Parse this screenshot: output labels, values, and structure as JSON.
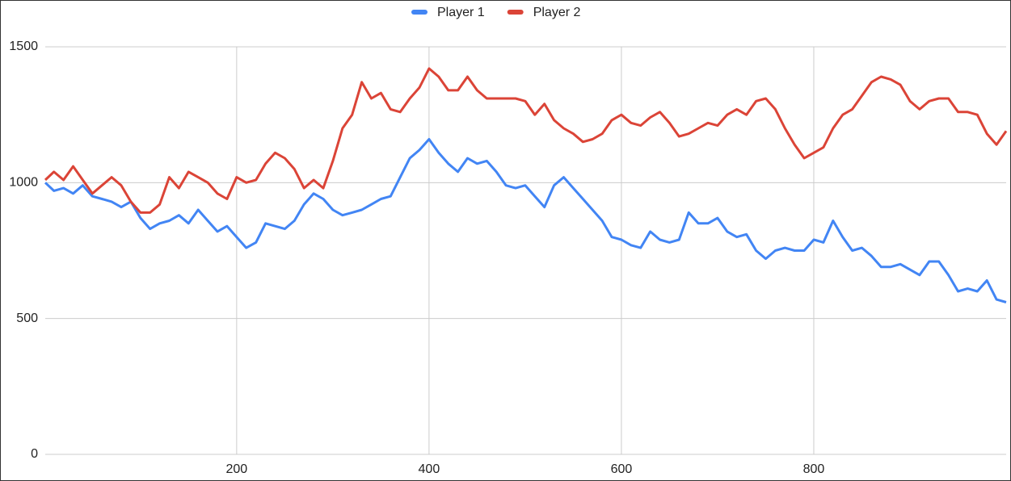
{
  "chart_data": {
    "type": "line",
    "x": [
      1,
      10,
      20,
      30,
      40,
      50,
      60,
      70,
      80,
      90,
      100,
      110,
      120,
      130,
      140,
      150,
      160,
      170,
      180,
      190,
      200,
      210,
      220,
      230,
      240,
      250,
      260,
      270,
      280,
      290,
      300,
      310,
      320,
      330,
      340,
      350,
      360,
      370,
      380,
      390,
      400,
      410,
      420,
      430,
      440,
      450,
      460,
      470,
      480,
      490,
      500,
      510,
      520,
      530,
      540,
      550,
      560,
      570,
      580,
      590,
      600,
      610,
      620,
      630,
      640,
      650,
      660,
      670,
      680,
      690,
      700,
      710,
      720,
      730,
      740,
      750,
      760,
      770,
      780,
      790,
      800,
      810,
      820,
      830,
      840,
      850,
      860,
      870,
      880,
      890,
      900,
      910,
      920,
      930,
      940,
      950,
      960,
      970,
      980,
      990,
      1000
    ],
    "series": [
      {
        "name": "Player 1",
        "color": "#4285f4",
        "values": [
          1000,
          970,
          980,
          960,
          990,
          950,
          940,
          930,
          910,
          930,
          870,
          830,
          850,
          860,
          880,
          850,
          900,
          860,
          820,
          840,
          800,
          760,
          780,
          850,
          840,
          830,
          860,
          920,
          960,
          940,
          900,
          880,
          890,
          900,
          920,
          940,
          950,
          1020,
          1090,
          1120,
          1160,
          1110,
          1070,
          1040,
          1090,
          1070,
          1080,
          1040,
          990,
          980,
          990,
          950,
          910,
          990,
          1020,
          980,
          940,
          900,
          860,
          800,
          790,
          770,
          760,
          820,
          790,
          780,
          790,
          890,
          850,
          850,
          870,
          820,
          800,
          810,
          750,
          720,
          750,
          760,
          750,
          750,
          790,
          780,
          860,
          800,
          750,
          760,
          730,
          690,
          690,
          700,
          680,
          660,
          710,
          710,
          660,
          600,
          610,
          600,
          640,
          570,
          560
        ]
      },
      {
        "name": "Player 2",
        "color": "#db4437",
        "values": [
          1010,
          1040,
          1010,
          1060,
          1010,
          960,
          990,
          1020,
          990,
          930,
          890,
          890,
          920,
          1020,
          980,
          1040,
          1020,
          1000,
          960,
          940,
          1020,
          1000,
          1010,
          1070,
          1110,
          1090,
          1050,
          980,
          1010,
          980,
          1080,
          1200,
          1250,
          1370,
          1310,
          1330,
          1270,
          1260,
          1310,
          1350,
          1420,
          1390,
          1340,
          1340,
          1390,
          1340,
          1310,
          1310,
          1310,
          1310,
          1300,
          1250,
          1290,
          1230,
          1200,
          1180,
          1150,
          1160,
          1180,
          1230,
          1250,
          1220,
          1210,
          1240,
          1260,
          1220,
          1170,
          1180,
          1200,
          1220,
          1210,
          1250,
          1270,
          1250,
          1300,
          1310,
          1270,
          1200,
          1140,
          1090,
          1110,
          1130,
          1200,
          1250,
          1270,
          1320,
          1370,
          1390,
          1380,
          1360,
          1300,
          1270,
          1300,
          1310,
          1310,
          1260,
          1260,
          1250,
          1180,
          1140,
          1190
        ]
      }
    ],
    "xlim": [
      1,
      1000
    ],
    "ylim": [
      0,
      1500
    ],
    "xticks": [
      200,
      400,
      600,
      800
    ],
    "yticks": [
      0,
      500,
      1000,
      1500
    ],
    "grid": true,
    "legend": "top"
  }
}
